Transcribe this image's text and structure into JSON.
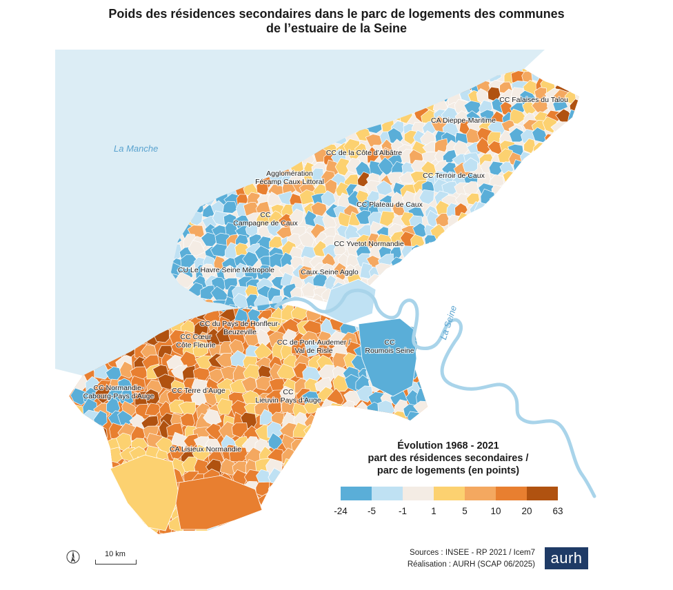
{
  "title": {
    "line1": "Poids des résidences secondaires dans le parc de logements des communes",
    "line2": "de l’estuaire de la Seine"
  },
  "water_labels": {
    "sea": "La Manche",
    "river": "La Seine"
  },
  "territories": [
    {
      "id": "falaises-talou",
      "lines": [
        "CC Falaises du Talou"
      ]
    },
    {
      "id": "dieppe-maritime",
      "lines": [
        "CA Dieppe-Maritime"
      ]
    },
    {
      "id": "cote-albatre",
      "lines": [
        "CC de la Côte d’Albâtre"
      ]
    },
    {
      "id": "fecamp",
      "lines": [
        "Agglomération",
        "Fécamp Caux Littoral"
      ]
    },
    {
      "id": "terroir-caux",
      "lines": [
        "CC Terroir de Caux"
      ]
    },
    {
      "id": "plateau-caux",
      "lines": [
        "CC Plateau de Caux"
      ]
    },
    {
      "id": "campagne-caux",
      "lines": [
        "CC",
        "Campagne de Caux"
      ]
    },
    {
      "id": "yvetot",
      "lines": [
        "CC Yvetot Normandie"
      ]
    },
    {
      "id": "le-havre",
      "lines": [
        "CU Le Havre Seine Métropole"
      ]
    },
    {
      "id": "caux-seine",
      "lines": [
        "Caux Seine Agglo"
      ]
    },
    {
      "id": "honfleur",
      "lines": [
        "CC du Pays de Honfleur-",
        "Beuzeville"
      ]
    },
    {
      "id": "coeur-cote-fleurie",
      "lines": [
        "CC Cœur",
        "Côte Fleurie"
      ]
    },
    {
      "id": "pont-audemer",
      "lines": [
        "CC de Pont-Audemer /",
        "Val de Risle"
      ]
    },
    {
      "id": "roumois",
      "lines": [
        "CC",
        "Roumois Seine"
      ]
    },
    {
      "id": "cabourg",
      "lines": [
        "CC Normandie-",
        "Cabourg-Pays d’Auge"
      ]
    },
    {
      "id": "terre-auge",
      "lines": [
        "CC Terre d’Auge"
      ]
    },
    {
      "id": "lieuvin",
      "lines": [
        "CC",
        "Lieuvin Pays d’Auge"
      ]
    },
    {
      "id": "lisieux",
      "lines": [
        "CA Lisieux Normandie"
      ]
    }
  ],
  "legend": {
    "title_line1": "Évolution 1968 - 2021",
    "title_line2": "part des résidences secondaires /",
    "title_line3": "parc de logements (en points)",
    "classes": [
      {
        "color": "#5aaed8"
      },
      {
        "color": "#bfe1f3"
      },
      {
        "color": "#f4ece4"
      },
      {
        "color": "#fcd170"
      },
      {
        "color": "#f4a860"
      },
      {
        "color": "#e87f30"
      },
      {
        "color": "#b05210"
      }
    ],
    "ticks": [
      "-24",
      "-5",
      "-1",
      "1",
      "5",
      "10",
      "20",
      "63"
    ]
  },
  "scale": {
    "label": "10 km"
  },
  "sources": {
    "line1": "Sources : INSEE - RP 2021 / Icem7",
    "line2": "Réalisation : AURH (SCAP 06/2025)"
  },
  "logo": {
    "text": "aurh"
  },
  "colors": {
    "sea": "#dcedf5",
    "river": "#a9d4ea",
    "boundary": "#ffffff"
  }
}
